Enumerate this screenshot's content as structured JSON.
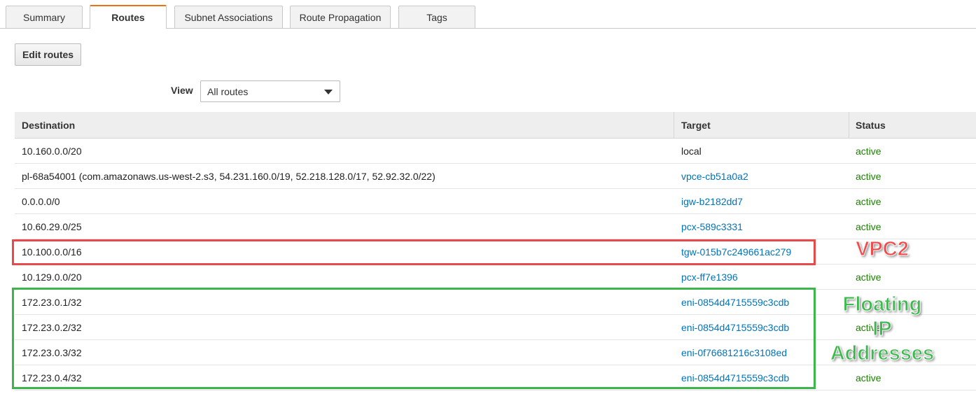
{
  "tabs": [
    "Summary",
    "Routes",
    "Subnet Associations",
    "Route Propagation",
    "Tags"
  ],
  "active_tab": 1,
  "edit_button": "Edit routes",
  "view_label": "View",
  "view_select": "All routes",
  "table": {
    "headers": [
      "Destination",
      "Target",
      "Status"
    ],
    "link_color": "#0073bb",
    "status_color": "#1d8102",
    "rows": [
      {
        "destination": "10.160.0.0/20",
        "target": "local",
        "target_link": false,
        "status": "active"
      },
      {
        "destination": "pl-68a54001 (com.amazonaws.us-west-2.s3, 54.231.160.0/19, 52.218.128.0/17, 52.92.32.0/22)",
        "target": "vpce-cb51a0a2",
        "target_link": true,
        "status": "active"
      },
      {
        "destination": "0.0.0.0/0",
        "target": "igw-b2182dd7",
        "target_link": true,
        "status": "active"
      },
      {
        "destination": "10.60.29.0/25",
        "target": "pcx-589c3331",
        "target_link": true,
        "status": "active"
      },
      {
        "destination": "10.100.0.0/16",
        "target": "tgw-015b7c249661ac279",
        "target_link": true,
        "status": null
      },
      {
        "destination": "10.129.0.0/20",
        "target": "pcx-ff7e1396",
        "target_link": true,
        "status": "active"
      },
      {
        "destination": "172.23.0.1/32",
        "target": "eni-0854d4715559c3cdb",
        "target_link": true,
        "status": null
      },
      {
        "destination": "172.23.0.2/32",
        "target": "eni-0854d4715559c3cdb",
        "target_link": true,
        "status": "active"
      },
      {
        "destination": "172.23.0.3/32",
        "target": "eni-0f76681216c3108ed",
        "target_link": true,
        "status": null
      },
      {
        "destination": "172.23.0.4/32",
        "target": "eni-0854d4715559c3cdb",
        "target_link": true,
        "status": "active"
      }
    ]
  },
  "annotations": {
    "vpc2": {
      "text": "VPC2",
      "color": "#f04c4c"
    },
    "floating": {
      "lines": [
        "Floating",
        "IP",
        "Addresses"
      ],
      "color": "#3dba4e"
    }
  }
}
